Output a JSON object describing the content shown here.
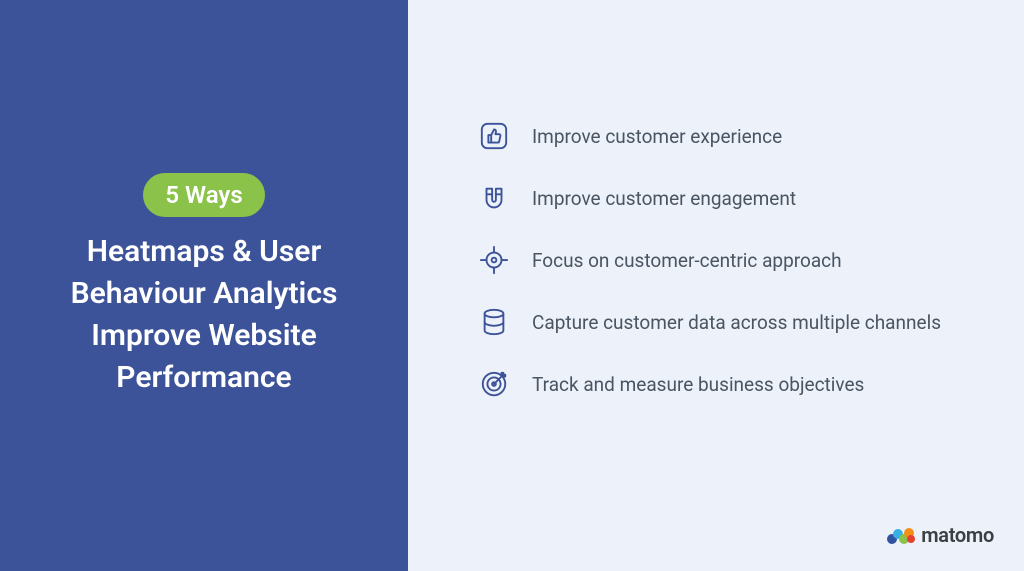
{
  "colors": {
    "left_bg": "#3c5399",
    "right_bg": "#ecf1fa",
    "badge_bg": "#8bc34a",
    "badge_text": "#ffffff",
    "title_text": "#ffffff",
    "item_text": "#4a5561",
    "icon_stroke": "#3c5399",
    "logo_text": "#3a3f44"
  },
  "badge": "5 Ways",
  "title": "Heatmaps & User Behaviour Analytics Improve Website Performance",
  "items": [
    {
      "icon": "thumbs-up",
      "label": "Improve customer experience"
    },
    {
      "icon": "magnet",
      "label": "Improve customer engagement"
    },
    {
      "icon": "crosshair",
      "label": "Focus on customer-centric approach"
    },
    {
      "icon": "database",
      "label": "Capture customer data across multiple channels"
    },
    {
      "icon": "target",
      "label": "Track and measure business objectives"
    }
  ],
  "logo": "matomo",
  "logo_colors": {
    "a": "#3253a0",
    "b": "#37b0e3",
    "c": "#8bc34a",
    "d": "#f39019",
    "e": "#e24030"
  }
}
